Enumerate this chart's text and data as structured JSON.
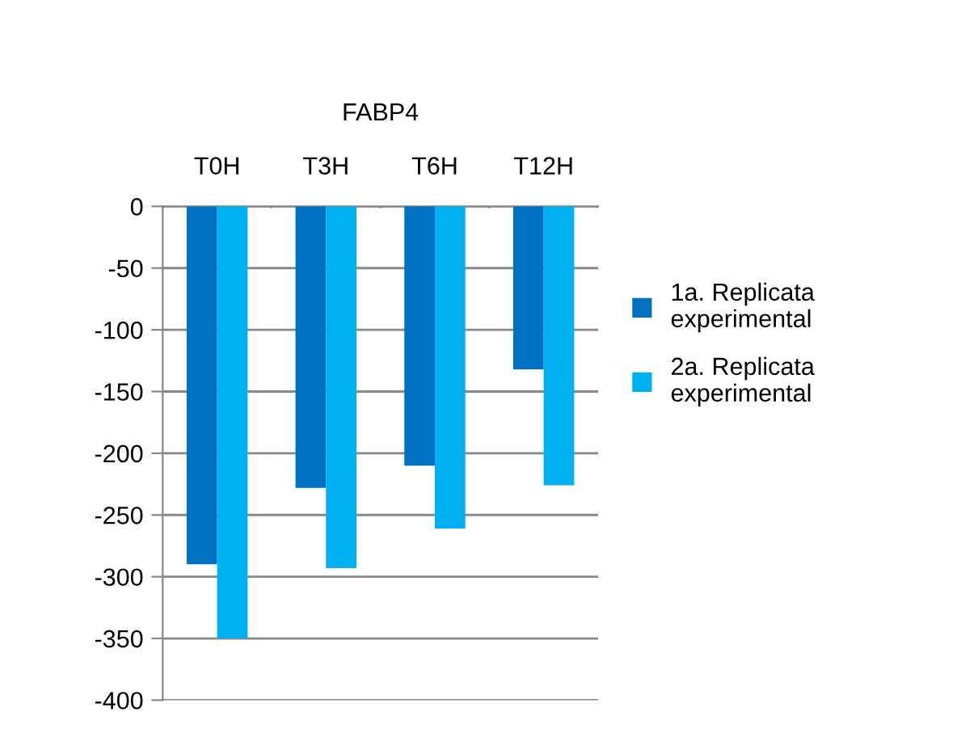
{
  "chart_data": {
    "type": "bar",
    "xlabel": "FABP4",
    "categories": [
      "T0H",
      "T3H",
      "T6H",
      "T12H"
    ],
    "series": [
      {
        "name": "1a. Replicata experimental",
        "color": "#0070c0",
        "values": [
          -290,
          -228,
          -210,
          -132
        ]
      },
      {
        "name": "2a. Replicata experimental",
        "color": "#00b0f0",
        "values": [
          -350,
          -293,
          -261,
          -226
        ]
      }
    ],
    "ylim": [
      -400,
      0
    ],
    "yticks": [
      -400,
      -350,
      -300,
      -250,
      -200,
      -150,
      -100,
      -50,
      0
    ],
    "grid": "y",
    "legend": "right"
  }
}
